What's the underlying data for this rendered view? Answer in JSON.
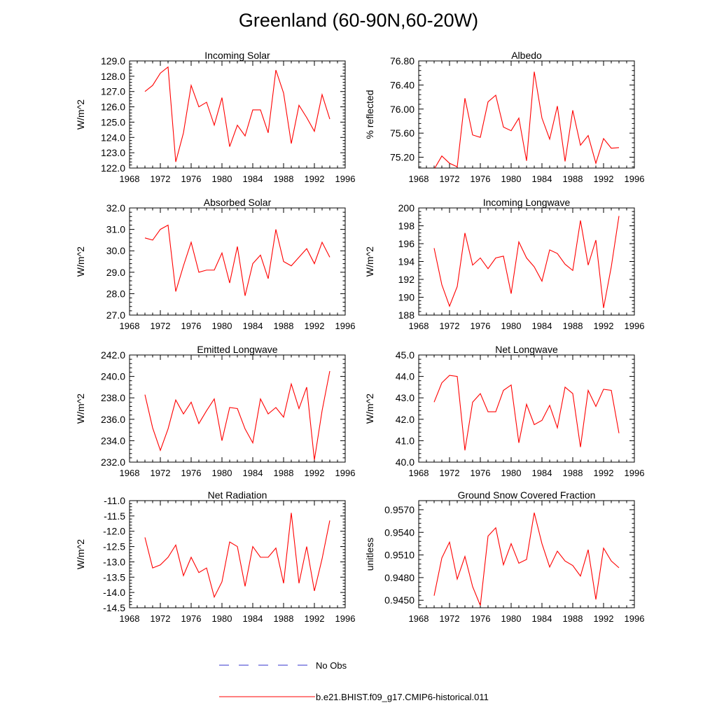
{
  "title": "Greenland (60-90N,60-20W)",
  "legend": {
    "entries": [
      {
        "label": "No Obs",
        "color": "#3333cc",
        "style": "dashed"
      },
      {
        "label": "b.e21.BHIST.f09_g17.CMIP6-historical.011",
        "color": "#ff0000",
        "style": "solid"
      }
    ],
    "placement": "bottom-center"
  },
  "chart_data": [
    {
      "type": "line",
      "title": "Incoming Solar",
      "ylabel": "W/m^2",
      "xlabel": "",
      "xlim": [
        1968,
        1996
      ],
      "ylim": [
        122,
        129
      ],
      "xticks": [
        "1968",
        "1972",
        "1976",
        "1980",
        "1984",
        "1988",
        "1992",
        "1996"
      ],
      "yticks": [
        "122.0",
        "123.0",
        "124.0",
        "125.0",
        "126.0",
        "127.0",
        "128.0",
        "129.0"
      ],
      "x": [
        1970,
        1971,
        1972,
        1973,
        1974,
        1975,
        1976,
        1977,
        1978,
        1979,
        1980,
        1981,
        1982,
        1983,
        1984,
        1985,
        1986,
        1987,
        1988,
        1989,
        1990,
        1991,
        1992,
        1993,
        1994
      ],
      "series": [
        {
          "color": "#ff0000",
          "values": [
            127.0,
            127.4,
            128.2,
            128.6,
            122.4,
            124.3,
            127.4,
            126.0,
            126.3,
            124.8,
            126.6,
            123.4,
            124.8,
            124.1,
            125.8,
            125.8,
            124.3,
            128.4,
            126.9,
            123.6,
            126.1,
            125.3,
            124.4,
            126.8,
            125.2
          ]
        }
      ]
    },
    {
      "type": "line",
      "title": "Albedo",
      "ylabel": "% reflected",
      "xlabel": "",
      "xlim": [
        1968,
        1996
      ],
      "ylim": [
        75.02,
        76.8
      ],
      "xticks": [
        "1968",
        "1972",
        "1976",
        "1980",
        "1984",
        "1988",
        "1992",
        "1996"
      ],
      "yticks": [
        "75.20",
        "75.60",
        "76.00",
        "76.40",
        "76.80"
      ],
      "x": [
        1970,
        1971,
        1972,
        1973,
        1974,
        1975,
        1976,
        1977,
        1978,
        1979,
        1980,
        1981,
        1982,
        1983,
        1984,
        1985,
        1986,
        1987,
        1988,
        1989,
        1990,
        1991,
        1992,
        1993,
        1994
      ],
      "series": [
        {
          "color": "#ff0000",
          "values": [
            75.0,
            75.22,
            75.1,
            75.04,
            76.18,
            75.57,
            75.53,
            76.12,
            76.23,
            75.7,
            75.64,
            75.85,
            75.14,
            76.62,
            75.85,
            75.5,
            76.05,
            75.13,
            75.98,
            75.4,
            75.56,
            75.1,
            75.51,
            75.35,
            75.36
          ]
        }
      ]
    },
    {
      "type": "line",
      "title": "Absorbed Solar",
      "ylabel": "W/m^2",
      "xlabel": "",
      "xlim": [
        1968,
        1996
      ],
      "ylim": [
        27,
        32
      ],
      "xticks": [
        "1968",
        "1972",
        "1976",
        "1980",
        "1984",
        "1988",
        "1992",
        "1996"
      ],
      "yticks": [
        "27.0",
        "28.0",
        "29.0",
        "30.0",
        "31.0",
        "32.0"
      ],
      "x": [
        1970,
        1971,
        1972,
        1973,
        1974,
        1975,
        1976,
        1977,
        1978,
        1979,
        1980,
        1981,
        1982,
        1983,
        1984,
        1985,
        1986,
        1987,
        1988,
        1989,
        1990,
        1991,
        1992,
        1993,
        1994
      ],
      "series": [
        {
          "color": "#ff0000",
          "values": [
            30.6,
            30.5,
            31.0,
            31.2,
            28.1,
            29.3,
            30.4,
            29.0,
            29.1,
            29.1,
            29.9,
            28.5,
            30.2,
            27.9,
            29.4,
            29.8,
            28.7,
            31.0,
            29.5,
            29.3,
            29.7,
            30.1,
            29.4,
            30.4,
            29.7
          ]
        }
      ]
    },
    {
      "type": "line",
      "title": "Incoming Longwave",
      "ylabel": "W/m^2",
      "xlabel": "",
      "xlim": [
        1968,
        1996
      ],
      "ylim": [
        188,
        200
      ],
      "xticks": [
        "1968",
        "1972",
        "1976",
        "1980",
        "1984",
        "1988",
        "1992",
        "1996"
      ],
      "yticks": [
        "188",
        "190",
        "192",
        "194",
        "196",
        "198",
        "200"
      ],
      "x": [
        1970,
        1971,
        1972,
        1973,
        1974,
        1975,
        1976,
        1977,
        1978,
        1979,
        1980,
        1981,
        1982,
        1983,
        1984,
        1985,
        1986,
        1987,
        1988,
        1989,
        1990,
        1991,
        1992,
        1993,
        1994
      ],
      "series": [
        {
          "color": "#ff0000",
          "values": [
            195.5,
            191.4,
            189.0,
            191.2,
            197.2,
            193.6,
            194.4,
            193.2,
            194.4,
            194.6,
            190.4,
            196.2,
            194.4,
            193.4,
            191.8,
            195.3,
            194.9,
            193.7,
            193.0,
            198.6,
            193.6,
            196.4,
            188.8,
            193.4,
            199.1
          ]
        }
      ]
    },
    {
      "type": "line",
      "title": "Emitted Longwave",
      "ylabel": "W/m^2",
      "xlabel": "",
      "xlim": [
        1968,
        1996
      ],
      "ylim": [
        232,
        242
      ],
      "xticks": [
        "1968",
        "1972",
        "1976",
        "1980",
        "1984",
        "1988",
        "1992",
        "1996"
      ],
      "yticks": [
        "232.0",
        "234.0",
        "236.0",
        "238.0",
        "240.0",
        "242.0"
      ],
      "x": [
        1970,
        1971,
        1972,
        1973,
        1974,
        1975,
        1976,
        1977,
        1978,
        1979,
        1980,
        1981,
        1982,
        1983,
        1984,
        1985,
        1986,
        1987,
        1988,
        1989,
        1990,
        1991,
        1992,
        1993,
        1994
      ],
      "series": [
        {
          "color": "#ff0000",
          "values": [
            238.3,
            235.2,
            233.1,
            235.1,
            237.8,
            236.5,
            237.6,
            235.6,
            236.8,
            237.9,
            234.0,
            237.1,
            237.0,
            235.1,
            233.8,
            237.9,
            236.5,
            237.1,
            236.2,
            239.3,
            237.0,
            239.0,
            232.2,
            236.8,
            240.5
          ]
        }
      ]
    },
    {
      "type": "line",
      "title": "Net Longwave",
      "ylabel": "W/m^2",
      "xlabel": "",
      "xlim": [
        1968,
        1996
      ],
      "ylim": [
        40,
        45
      ],
      "xticks": [
        "1968",
        "1972",
        "1976",
        "1980",
        "1984",
        "1988",
        "1992",
        "1996"
      ],
      "yticks": [
        "40.0",
        "41.0",
        "42.0",
        "43.0",
        "44.0",
        "45.0"
      ],
      "x": [
        1970,
        1971,
        1972,
        1973,
        1974,
        1975,
        1976,
        1977,
        1978,
        1979,
        1980,
        1981,
        1982,
        1983,
        1984,
        1985,
        1986,
        1987,
        1988,
        1989,
        1990,
        1991,
        1992,
        1993,
        1994
      ],
      "series": [
        {
          "color": "#ff0000",
          "values": [
            42.8,
            43.7,
            44.05,
            44.0,
            40.55,
            42.8,
            43.2,
            42.35,
            42.35,
            43.35,
            43.6,
            40.9,
            42.7,
            41.75,
            41.95,
            42.65,
            41.6,
            43.5,
            43.2,
            40.7,
            43.35,
            42.6,
            43.4,
            43.35,
            41.35
          ]
        }
      ]
    },
    {
      "type": "line",
      "title": "Net Radiation",
      "ylabel": "W/m^2",
      "xlabel": "",
      "xlim": [
        1968,
        1996
      ],
      "ylim": [
        -14.5,
        -11
      ],
      "xticks": [
        "1968",
        "1972",
        "1976",
        "1980",
        "1984",
        "1988",
        "1992",
        "1996"
      ],
      "yticks": [
        "-14.5",
        "-14.0",
        "-13.5",
        "-13.0",
        "-12.5",
        "-12.0",
        "-11.5",
        "-11.0"
      ],
      "x": [
        1970,
        1971,
        1972,
        1973,
        1974,
        1975,
        1976,
        1977,
        1978,
        1979,
        1980,
        1981,
        1982,
        1983,
        1984,
        1985,
        1986,
        1987,
        1988,
        1989,
        1990,
        1991,
        1992,
        1993,
        1994
      ],
      "series": [
        {
          "color": "#ff0000",
          "values": [
            -12.2,
            -13.2,
            -13.1,
            -12.85,
            -12.45,
            -13.45,
            -12.85,
            -13.35,
            -13.2,
            -14.15,
            -13.65,
            -12.35,
            -12.5,
            -13.8,
            -12.5,
            -12.85,
            -12.85,
            -12.55,
            -13.7,
            -11.4,
            -13.7,
            -12.5,
            -13.95,
            -12.9,
            -11.65
          ]
        }
      ]
    },
    {
      "type": "line",
      "title": "Ground Snow Covered Fraction",
      "ylabel": "unitless",
      "xlabel": "",
      "xlim": [
        1968,
        1996
      ],
      "ylim": [
        0.944,
        0.9582
      ],
      "xticks": [
        "1968",
        "1972",
        "1976",
        "1980",
        "1984",
        "1988",
        "1992",
        "1996"
      ],
      "yticks": [
        "0.9450",
        "0.9480",
        "0.9510",
        "0.9540",
        "0.9570"
      ],
      "x": [
        1970,
        1971,
        1972,
        1973,
        1974,
        1975,
        1976,
        1977,
        1978,
        1979,
        1980,
        1981,
        1982,
        1983,
        1984,
        1985,
        1986,
        1987,
        1988,
        1989,
        1990,
        1991,
        1992,
        1993,
        1994
      ],
      "series": [
        {
          "color": "#ff0000",
          "values": [
            0.9456,
            0.9506,
            0.9527,
            0.9478,
            0.9508,
            0.9468,
            0.9443,
            0.9535,
            0.9546,
            0.9497,
            0.9525,
            0.9499,
            0.9504,
            0.9566,
            0.9525,
            0.9494,
            0.9515,
            0.9502,
            0.9496,
            0.9482,
            0.9517,
            0.9451,
            0.9519,
            0.9502,
            0.9493
          ]
        }
      ]
    }
  ]
}
